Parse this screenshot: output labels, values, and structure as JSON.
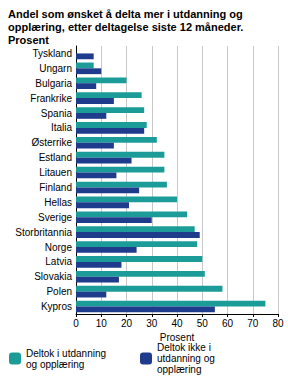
{
  "chart_data": {
    "type": "bar",
    "orientation": "horizontal",
    "title": "Andel som ønsket å delta mer i utdanning og opplæring, etter deltagelse siste 12 måneder. Prosent",
    "x_label": "Prosent",
    "categories": [
      "Tyskland",
      "Ungarn",
      "Bulgaria",
      "Frankrike",
      "Spania",
      "Italia",
      "Østerrike",
      "Estland",
      "Litauen",
      "Finland",
      "Hellas",
      "Sverige",
      "Storbritannia",
      "Norge",
      "Latvia",
      "Slovakia",
      "Polen",
      "Kypros"
    ],
    "series": [
      {
        "name": "Deltok i utdanning og opplæring",
        "color": "#1c9c98",
        "values": [
          null,
          7,
          20,
          26,
          27,
          28,
          32,
          35,
          35,
          36,
          40,
          44,
          47,
          48,
          50,
          51,
          58,
          75
        ]
      },
      {
        "name": "Deltok ikke i utdanning og opplæring",
        "color": "#1f3b8c",
        "values": [
          7,
          10,
          8,
          15,
          12,
          27,
          15,
          22,
          16,
          25,
          21,
          30,
          49,
          24,
          18,
          17,
          12,
          55
        ]
      }
    ],
    "xlim": [
      0,
      80
    ],
    "xticks": [
      0,
      10,
      20,
      30,
      40,
      50,
      60,
      70,
      80
    ],
    "grid": true,
    "legend": "bottom"
  }
}
